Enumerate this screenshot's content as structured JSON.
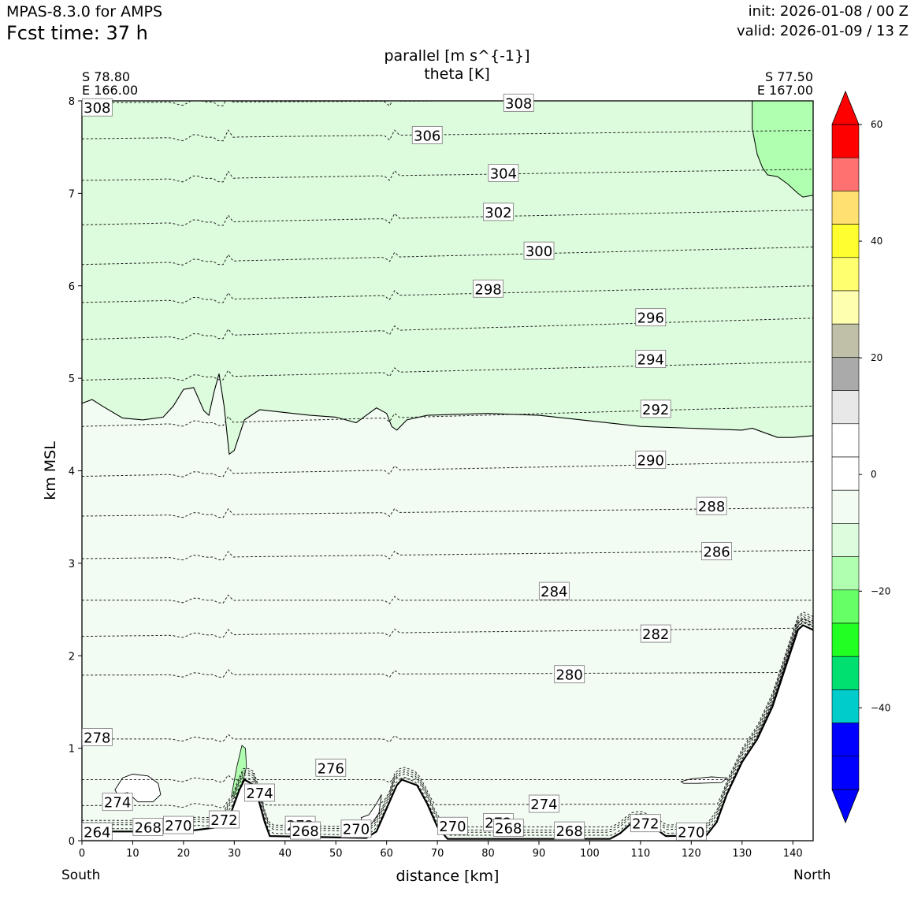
{
  "header": {
    "model": "MPAS-8.3.0 for AMPS",
    "forecast_time": "Fcst time:   37 h",
    "init": "init: 2026-01-08 / 00 Z",
    "valid": "valid: 2026-01-09 / 13 Z"
  },
  "plot": {
    "title_line1": "parallel [m s^{-1}]",
    "title_line2": "theta [K]",
    "left_end": {
      "lat": "S 78.80",
      "lon": "E 166.00"
    },
    "right_end": {
      "lat": "S 77.50",
      "lon": "E 167.00"
    },
    "direction_left": "South",
    "direction_right": "North"
  },
  "chart_data": {
    "type": "contour",
    "xlabel": "distance [km]",
    "ylabel": "km MSL",
    "xlim": [
      0,
      144
    ],
    "ylim": [
      0,
      8
    ],
    "xticks": [
      0,
      10,
      20,
      30,
      40,
      50,
      60,
      70,
      80,
      90,
      100,
      110,
      120,
      130,
      140
    ],
    "yticks": [
      0,
      1,
      2,
      3,
      4,
      5,
      6,
      7,
      8
    ],
    "terrain_km": [
      [
        0,
        0.1
      ],
      [
        20,
        0.1
      ],
      [
        26,
        0.14
      ],
      [
        29,
        0.25
      ],
      [
        31,
        0.55
      ],
      [
        32,
        0.66
      ],
      [
        34,
        0.6
      ],
      [
        36,
        0.2
      ],
      [
        37,
        0.05
      ],
      [
        56,
        0.03
      ],
      [
        58,
        0.1
      ],
      [
        60,
        0.35
      ],
      [
        62,
        0.6
      ],
      [
        63,
        0.66
      ],
      [
        66,
        0.6
      ],
      [
        68,
        0.4
      ],
      [
        70,
        0.15
      ],
      [
        72,
        0.02
      ],
      [
        104,
        0.02
      ],
      [
        106,
        0.08
      ],
      [
        108,
        0.18
      ],
      [
        110,
        0.2
      ],
      [
        113,
        0.13
      ],
      [
        115,
        0.05
      ],
      [
        123,
        0.06
      ],
      [
        125,
        0.2
      ],
      [
        127,
        0.5
      ],
      [
        130,
        0.85
      ],
      [
        133,
        1.1
      ],
      [
        136,
        1.45
      ],
      [
        139,
        1.95
      ],
      [
        141,
        2.28
      ],
      [
        142,
        2.33
      ],
      [
        144,
        2.28
      ]
    ],
    "parallel_wind_boundary_km": [
      [
        0,
        4.73
      ],
      [
        2,
        4.77
      ],
      [
        4,
        4.7
      ],
      [
        8,
        4.57
      ],
      [
        12,
        4.55
      ],
      [
        16,
        4.58
      ],
      [
        18,
        4.7
      ],
      [
        20,
        4.88
      ],
      [
        22,
        4.9
      ],
      [
        24,
        4.65
      ],
      [
        25,
        4.6
      ],
      [
        26,
        4.85
      ],
      [
        27,
        5.05
      ],
      [
        28,
        4.7
      ],
      [
        29,
        4.18
      ],
      [
        30,
        4.22
      ],
      [
        32,
        4.55
      ],
      [
        35,
        4.66
      ],
      [
        40,
        4.63
      ],
      [
        45,
        4.6
      ],
      [
        50,
        4.58
      ],
      [
        54,
        4.52
      ],
      [
        56,
        4.6
      ],
      [
        58,
        4.68
      ],
      [
        60,
        4.62
      ],
      [
        61,
        4.48
      ],
      [
        62,
        4.44
      ],
      [
        64,
        4.55
      ],
      [
        68,
        4.6
      ],
      [
        80,
        4.62
      ],
      [
        90,
        4.6
      ],
      [
        100,
        4.54
      ],
      [
        110,
        4.48
      ],
      [
        120,
        4.46
      ],
      [
        130,
        4.44
      ],
      [
        132,
        4.46
      ],
      [
        134,
        4.42
      ],
      [
        137,
        4.36
      ],
      [
        140,
        4.36
      ],
      [
        144,
        4.38
      ]
    ],
    "theta_levels": [
      264,
      268,
      270,
      272,
      274,
      276,
      278,
      280,
      282,
      284,
      286,
      288,
      290,
      292,
      294,
      296,
      298,
      300,
      302,
      304,
      306,
      308
    ],
    "theta_contours": [
      {
        "level": 308,
        "z_left": 7.98,
        "z_right": 8.02
      },
      {
        "level": 306,
        "z_left": 7.59,
        "z_right": 7.68
      },
      {
        "level": 304,
        "z_left": 7.14,
        "z_right": 7.26
      },
      {
        "level": 302,
        "z_left": 6.66,
        "z_right": 6.82
      },
      {
        "level": 300,
        "z_left": 6.23,
        "z_right": 6.42
      },
      {
        "level": 298,
        "z_left": 5.82,
        "z_right": 6.0
      },
      {
        "level": 296,
        "z_left": 5.42,
        "z_right": 5.65
      },
      {
        "level": 294,
        "z_left": 4.98,
        "z_right": 5.18
      },
      {
        "level": 292,
        "z_left": 4.48,
        "z_right": 4.7
      },
      {
        "level": 290,
        "z_left": 3.94,
        "z_right": 4.1
      },
      {
        "level": 288,
        "z_left": 3.51,
        "z_right": 3.6
      },
      {
        "level": 286,
        "z_left": 3.05,
        "z_right": 3.14
      },
      {
        "level": 284,
        "z_left": 2.6,
        "z_right": 2.6
      },
      {
        "level": 282,
        "z_left": 2.21,
        "z_right": 2.3
      },
      {
        "level": 280,
        "z_left": 1.79,
        "z_right": 1.82
      },
      {
        "level": 278,
        "z_left": 1.1,
        "z_right": 1.1
      },
      {
        "level": 276,
        "z_left": 0.66,
        "z_right": 0.66
      },
      {
        "level": 274,
        "z_left": 0.38,
        "z_right": 0.4
      },
      {
        "level": 272,
        "z_left": 0.15,
        "z_right": 0.15
      },
      {
        "level": 270,
        "z_left": 0.1,
        "z_right": 0.1
      },
      {
        "level": 268,
        "z_left": 0.08,
        "z_right": 0.08
      },
      {
        "level": 264,
        "z_left": 0.06,
        "z_right": 0.06
      }
    ],
    "theta_labels": [
      {
        "text": "308",
        "x": 3,
        "y": 7.93
      },
      {
        "text": "308",
        "x": 86,
        "y": 7.98
      },
      {
        "text": "306",
        "x": 68,
        "y": 7.63
      },
      {
        "text": "304",
        "x": 83,
        "y": 7.22
      },
      {
        "text": "302",
        "x": 82,
        "y": 6.8
      },
      {
        "text": "300",
        "x": 90,
        "y": 6.38
      },
      {
        "text": "298",
        "x": 80,
        "y": 5.97
      },
      {
        "text": "296",
        "x": 112,
        "y": 5.66
      },
      {
        "text": "294",
        "x": 112,
        "y": 5.21
      },
      {
        "text": "292",
        "x": 113,
        "y": 4.67
      },
      {
        "text": "290",
        "x": 112,
        "y": 4.12
      },
      {
        "text": "288",
        "x": 124,
        "y": 3.62
      },
      {
        "text": "286",
        "x": 125,
        "y": 3.13
      },
      {
        "text": "284",
        "x": 93,
        "y": 2.7
      },
      {
        "text": "282",
        "x": 113,
        "y": 2.24
      },
      {
        "text": "280",
        "x": 96,
        "y": 1.8
      },
      {
        "text": "278",
        "x": 3,
        "y": 1.12
      },
      {
        "text": "276",
        "x": 49,
        "y": 0.79
      },
      {
        "text": "274",
        "x": 7,
        "y": 0.42
      },
      {
        "text": "274",
        "x": 35,
        "y": 0.52
      },
      {
        "text": "274",
        "x": 91,
        "y": 0.4
      },
      {
        "text": "272",
        "x": 28,
        "y": 0.23
      },
      {
        "text": "272",
        "x": 43,
        "y": 0.17
      },
      {
        "text": "272",
        "x": 82,
        "y": 0.2
      },
      {
        "text": "272",
        "x": 111,
        "y": 0.19
      },
      {
        "text": "270",
        "x": 19,
        "y": 0.17
      },
      {
        "text": "270",
        "x": 54,
        "y": 0.13
      },
      {
        "text": "270",
        "x": 73,
        "y": 0.16
      },
      {
        "text": "270",
        "x": 120,
        "y": 0.1
      },
      {
        "text": "268",
        "x": 13,
        "y": 0.15
      },
      {
        "text": "268",
        "x": 44,
        "y": 0.11
      },
      {
        "text": "268",
        "x": 84,
        "y": 0.14
      },
      {
        "text": "268",
        "x": 96,
        "y": 0.11
      },
      {
        "text": "264",
        "x": 3,
        "y": 0.1
      }
    ],
    "colorbar": {
      "ticks": [
        60,
        40,
        20,
        0,
        -20,
        -40
      ],
      "colors_top_to_bottom": [
        "#ff0000",
        "#ff7070",
        "#ffe070",
        "#ffff30",
        "#ffff70",
        "#ffffb0",
        "#c0c0a8",
        "#aaaaaa",
        "#e8e8e8",
        "#ffffff",
        "#ffffff",
        "#f2fcf2",
        "#ddfcdd",
        "#b0ffb0",
        "#66ff66",
        "#22ff22",
        "#00e070",
        "#00cccc",
        "#0000ff",
        "#0000ff"
      ],
      "extend": "both",
      "over_color": "#ff0000",
      "under_color": "#0000ff"
    },
    "shading": {
      "upper_region": "#ddfcdd",
      "lower_region": "#f2fcf2",
      "strong_region": "#b0ffb0"
    }
  }
}
